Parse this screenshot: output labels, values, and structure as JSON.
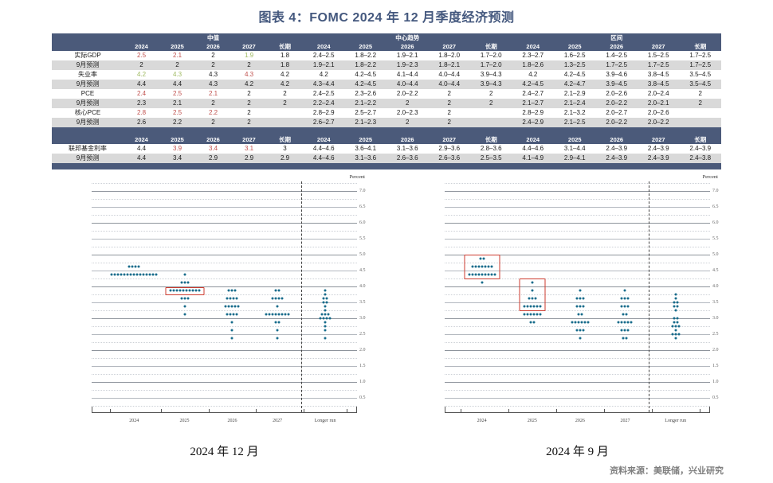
{
  "title": "图表 4：FOMC 2024 年 12 月季度经济预测",
  "source": "资料来源：美联储，兴业研究",
  "table": {
    "sections": [
      "中值",
      "中心趋势",
      "区间"
    ],
    "years": [
      "2024",
      "2025",
      "2026",
      "2027",
      "长期"
    ],
    "value_colors": {
      "red": "#c0504d",
      "green": "#9fba62"
    },
    "rows": [
      {
        "label": "实际GDP",
        "cells": [
          "2.5",
          "2.1",
          "2",
          "1.9",
          "1.8",
          "2.4–2.5",
          "1.8–2.2",
          "1.9–2.1",
          "1.8–2.0",
          "1.7–2.0",
          "2.3–2.7",
          "1.6–2.5",
          "1.4–2.5",
          "1.5–2.5",
          "1.7–2.5"
        ],
        "colors": {
          "0": "red",
          "1": "red",
          "3": "green"
        }
      },
      {
        "label": "9月预测",
        "cells": [
          "2",
          "2",
          "2",
          "2",
          "1.8",
          "1.9–2.1",
          "1.8–2.2",
          "1.9–2.3",
          "1.8–2.1",
          "1.7–2.0",
          "1.8–2.6",
          "1.3–2.5",
          "1.7–2.5",
          "1.7–2.5",
          "1.7–2.5"
        ],
        "colors": {}
      },
      {
        "label": "失业率",
        "cells": [
          "4.2",
          "4.3",
          "4.3",
          "4.3",
          "4.2",
          "4.2",
          "4.2–4.5",
          "4.1–4.4",
          "4.0–4.4",
          "3.9–4.3",
          "4.2",
          "4.2–4.5",
          "3.9–4.6",
          "3.8–4.5",
          "3.5–4.5"
        ],
        "colors": {
          "0": "green",
          "1": "green",
          "3": "red"
        }
      },
      {
        "label": "9月预测",
        "cells": [
          "4.4",
          "4.4",
          "4.3",
          "4.2",
          "4.2",
          "4.3–4.4",
          "4.2–4.5",
          "4.0–4.4",
          "4.0–4.4",
          "3.9–4.3",
          "4.2–4.5",
          "4.2–4.7",
          "3.9–4.5",
          "3.8–4.5",
          "3.5–4.5"
        ],
        "colors": {}
      },
      {
        "label": "PCE",
        "cells": [
          "2.4",
          "2.5",
          "2.1",
          "2",
          "2",
          "2.4–2.5",
          "2.3–2.6",
          "2.0–2.2",
          "2",
          "2",
          "2.4–2.7",
          "2.1–2.9",
          "2.0–2.6",
          "2.0–2.4",
          "2"
        ],
        "colors": {
          "0": "red",
          "1": "red",
          "2": "red"
        }
      },
      {
        "label": "9月预测",
        "cells": [
          "2.3",
          "2.1",
          "2",
          "2",
          "2",
          "2.2–2.4",
          "2.1–2.2",
          "2",
          "2",
          "2",
          "2.1–2.7",
          "2.1–2.4",
          "2.0–2.2",
          "2.0–2.1",
          "2"
        ],
        "colors": {}
      },
      {
        "label": "核心PCE",
        "cells": [
          "2.8",
          "2.5",
          "2.2",
          "2",
          "",
          "2.8–2.9",
          "2.5–2.7",
          "2.0–2.3",
          "2",
          "",
          "2.8–2.9",
          "2.1–3.2",
          "2.0–2.7",
          "2.0–2.6",
          ""
        ],
        "colors": {
          "0": "red",
          "1": "red",
          "2": "red"
        }
      },
      {
        "label": "9月预测",
        "cells": [
          "2.6",
          "2.2",
          "2",
          "2",
          "",
          "2.6–2.7",
          "2.1–2.3",
          "2",
          "2",
          "",
          "2.4–2.9",
          "2.1–2.5",
          "2.0–2.2",
          "2.0–2.2",
          ""
        ],
        "colors": {}
      }
    ],
    "rows2": [
      {
        "label": "联邦基金利率",
        "cells": [
          "4.4",
          "3.9",
          "3.4",
          "3.1",
          "3",
          "4.4–4.6",
          "3.6–4.1",
          "3.1–3.6",
          "2.9–3.6",
          "2.8–3.6",
          "4.4–4.6",
          "3.1–4.4",
          "2.4–3.9",
          "2.4–3.9",
          "2.4–3.9"
        ],
        "colors": {
          "1": "red",
          "2": "red",
          "3": "red"
        }
      },
      {
        "label": "9月预测",
        "cells": [
          "4.4",
          "3.4",
          "2.9",
          "2.9",
          "2.9",
          "4.4–4.6",
          "3.1–3.6",
          "2.6–3.6",
          "2.6–3.6",
          "2.5–3.5",
          "4.1–4.9",
          "2.9–4.1",
          "2.4–3.9",
          "2.4–3.9",
          "2.4–3.8"
        ],
        "colors": {}
      }
    ]
  },
  "chart_data": [
    {
      "type": "scatter",
      "title": "2024 年 12 月",
      "ylabel": "Percent",
      "ylim": [
        0.05,
        7.3
      ],
      "yticks": [
        7.0,
        6.5,
        6.0,
        5.5,
        5.0,
        4.5,
        4.0,
        3.5,
        3.0,
        2.5,
        2.0,
        1.5,
        1.0,
        0.5
      ],
      "categories": [
        "2024",
        "2025",
        "2026",
        "2027",
        "Longer run"
      ],
      "centers_pct": [
        16,
        35,
        53,
        70,
        88
      ],
      "divider_pct": 79,
      "tick_pct": [
        7,
        26,
        44,
        62,
        80,
        96
      ],
      "dot_color": "#186c8c",
      "highlight_color": "#cd3b2f",
      "series": [
        {
          "name": "2024",
          "dots": [
            [
              4.625,
              4
            ],
            [
              4.375,
              15
            ]
          ]
        },
        {
          "name": "2025",
          "dots": [
            [
              4.375,
              1
            ],
            [
              4.125,
              3
            ],
            [
              3.875,
              10
            ],
            [
              3.625,
              3
            ],
            [
              3.375,
              1
            ],
            [
              3.125,
              1
            ]
          ]
        },
        {
          "name": "2026",
          "dots": [
            [
              3.875,
              3
            ],
            [
              3.625,
              4
            ],
            [
              3.375,
              5
            ],
            [
              3.125,
              4
            ],
            [
              2.875,
              1
            ],
            [
              2.625,
              1
            ],
            [
              2.375,
              1
            ]
          ]
        },
        {
          "name": "2027",
          "dots": [
            [
              3.875,
              2
            ],
            [
              3.625,
              4
            ],
            [
              3.375,
              1
            ],
            [
              3.125,
              8
            ],
            [
              2.875,
              2
            ],
            [
              2.625,
              1
            ],
            [
              2.375,
              1
            ]
          ]
        },
        {
          "name": "Longer run",
          "dots": [
            [
              3.875,
              1
            ],
            [
              3.75,
              1
            ],
            [
              3.625,
              2
            ],
            [
              3.5,
              2
            ],
            [
              3.375,
              1
            ],
            [
              3.25,
              1
            ],
            [
              3.125,
              3
            ],
            [
              3.0,
              4
            ],
            [
              2.875,
              1
            ],
            [
              2.75,
              1
            ],
            [
              2.625,
              1
            ],
            [
              2.375,
              1
            ]
          ]
        }
      ],
      "highlight_boxes": [
        {
          "category": "2025",
          "top": 3.97,
          "bottom": 3.78
        }
      ]
    },
    {
      "type": "scatter",
      "title": "2024 年 9 月",
      "ylabel": "Percent",
      "ylim": [
        0.05,
        7.3
      ],
      "yticks": [
        7.0,
        6.5,
        6.0,
        5.5,
        5.0,
        4.5,
        4.0,
        3.5,
        3.0,
        2.5,
        2.0,
        1.5,
        1.0,
        0.5
      ],
      "categories": [
        "2024",
        "2025",
        "2026",
        "2027",
        "Longer run"
      ],
      "centers_pct": [
        14,
        33,
        51,
        68,
        87
      ],
      "divider_pct": 77,
      "tick_pct": [
        6,
        24,
        42,
        60,
        78,
        96
      ],
      "dot_color": "#186c8c",
      "highlight_color": "#cd3b2f",
      "series": [
        {
          "name": "2024",
          "dots": [
            [
              4.875,
              2
            ],
            [
              4.625,
              7
            ],
            [
              4.375,
              9
            ],
            [
              4.125,
              1
            ]
          ]
        },
        {
          "name": "2025",
          "dots": [
            [
              4.125,
              1
            ],
            [
              3.875,
              1
            ],
            [
              3.625,
              3
            ],
            [
              3.375,
              6
            ],
            [
              3.125,
              6
            ],
            [
              2.875,
              2
            ]
          ]
        },
        {
          "name": "2026",
          "dots": [
            [
              3.875,
              1
            ],
            [
              3.625,
              3
            ],
            [
              3.375,
              3
            ],
            [
              3.125,
              2
            ],
            [
              2.875,
              6
            ],
            [
              2.625,
              3
            ],
            [
              2.375,
              1
            ]
          ]
        },
        {
          "name": "2027",
          "dots": [
            [
              3.875,
              1
            ],
            [
              3.625,
              3
            ],
            [
              3.375,
              3
            ],
            [
              3.125,
              2
            ],
            [
              2.875,
              5
            ],
            [
              2.625,
              3
            ],
            [
              2.375,
              2
            ]
          ]
        },
        {
          "name": "Longer run",
          "dots": [
            [
              3.75,
              1
            ],
            [
              3.625,
              1
            ],
            [
              3.5,
              2
            ],
            [
              3.375,
              2
            ],
            [
              3.25,
              1
            ],
            [
              3.0,
              2
            ],
            [
              2.875,
              2
            ],
            [
              2.75,
              3
            ],
            [
              2.625,
              1
            ],
            [
              2.5,
              3
            ],
            [
              2.375,
              1
            ]
          ]
        }
      ],
      "highlight_boxes": [
        {
          "category": "2024",
          "top": 4.99,
          "bottom": 4.27
        },
        {
          "category": "2025",
          "top": 4.24,
          "bottom": 3.28
        }
      ]
    }
  ]
}
